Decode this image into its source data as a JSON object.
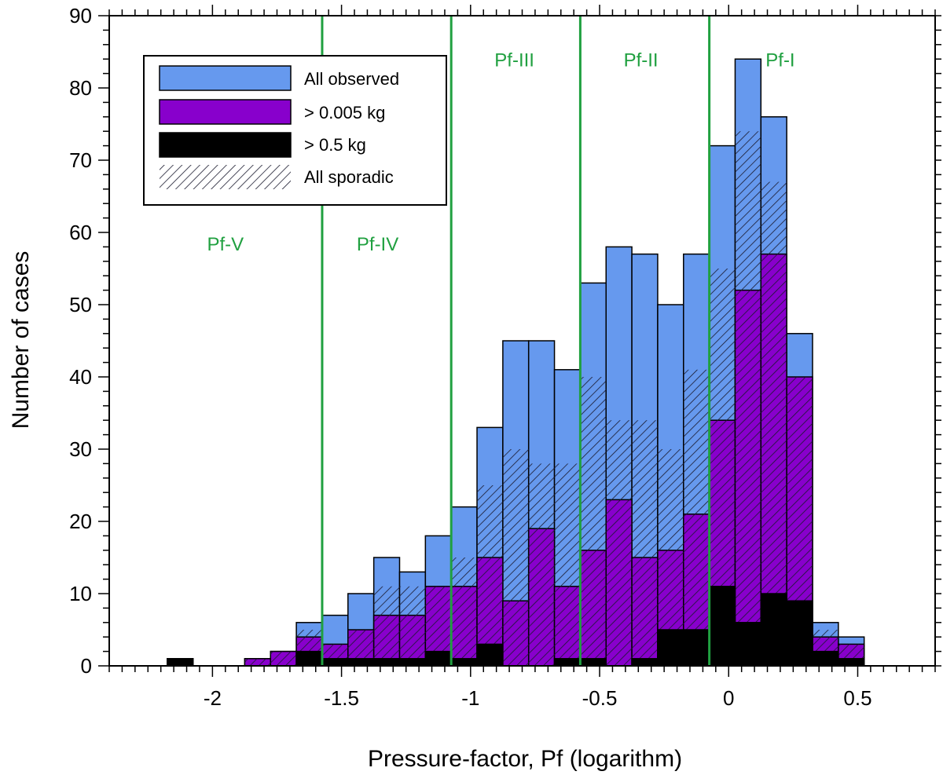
{
  "chart_data": {
    "type": "bar",
    "subtype": "histogram",
    "title": "",
    "xlabel": "Pressure-factor, Pf (logarithm)",
    "ylabel": "Number of cases",
    "xlim": [
      -2.4,
      0.8
    ],
    "ylim": [
      0,
      90
    ],
    "bin_width": 0.1,
    "x_ticks": [
      {
        "value": -2,
        "label": "-2"
      },
      {
        "value": -1.5,
        "label": "-1.5"
      },
      {
        "value": -1,
        "label": "-1"
      },
      {
        "value": -0.5,
        "label": "-0.5"
      },
      {
        "value": 0,
        "label": "0"
      },
      {
        "value": 0.5,
        "label": "0.5"
      }
    ],
    "y_ticks": [
      {
        "value": 0,
        "label": "0"
      },
      {
        "value": 10,
        "label": "10"
      },
      {
        "value": 20,
        "label": "20"
      },
      {
        "value": 30,
        "label": "30"
      },
      {
        "value": 40,
        "label": "40"
      },
      {
        "value": 50,
        "label": "50"
      },
      {
        "value": 60,
        "label": "60"
      },
      {
        "value": 70,
        "label": "70"
      },
      {
        "value": 80,
        "label": "80"
      },
      {
        "value": 90,
        "label": "90"
      }
    ],
    "bins_left_edge": [
      -2.175,
      -1.875,
      -1.775,
      -1.675,
      -1.575,
      -1.475,
      -1.375,
      -1.275,
      -1.175,
      -1.075,
      -0.975,
      -0.875,
      -0.775,
      -0.675,
      -0.575,
      -0.475,
      -0.375,
      -0.275,
      -0.175,
      -0.075,
      0.025,
      0.125,
      0.225,
      0.325,
      0.425
    ],
    "series": [
      {
        "name": "All observed",
        "color": "#6699ee",
        "values": [
          1,
          1,
          2,
          6,
          7,
          10,
          15,
          13,
          18,
          22,
          33,
          45,
          45,
          41,
          53,
          58,
          57,
          50,
          57,
          72,
          84,
          76,
          46,
          6,
          4
        ]
      },
      {
        "name": "> 0.005 kg",
        "color": "#8800cc",
        "values": [
          1,
          1,
          2,
          4,
          3,
          5,
          7,
          7,
          11,
          11,
          15,
          9,
          19,
          11,
          16,
          23,
          15,
          16,
          21,
          34,
          52,
          57,
          40,
          4,
          3
        ]
      },
      {
        "name": "> 0.5 kg",
        "color": "#000000",
        "values": [
          1,
          0,
          0,
          2,
          1,
          1,
          1,
          1,
          2,
          1,
          3,
          0,
          0,
          1,
          1,
          0,
          1,
          5,
          5,
          11,
          6,
          10,
          9,
          2,
          1
        ]
      },
      {
        "name": "All sporadic",
        "pattern": "hatched",
        "values": [
          0,
          1,
          2,
          5,
          3,
          5,
          11,
          11,
          11,
          15,
          25,
          30,
          28,
          28,
          40,
          34,
          34,
          30,
          41,
          55,
          74,
          67,
          40,
          5,
          3
        ]
      }
    ],
    "legend_position": "top-left",
    "region_boundaries": [
      -1.575,
      -1.075,
      -0.575,
      -0.075
    ],
    "region_color": "#20a040",
    "regions": [
      {
        "label": "Pf-V",
        "x": -1.95,
        "y": 57.5
      },
      {
        "label": "Pf-IV",
        "x": -1.36,
        "y": 57.5
      },
      {
        "label": "Pf-III",
        "x": -0.83,
        "y": 83
      },
      {
        "label": "Pf-II",
        "x": -0.34,
        "y": 83
      },
      {
        "label": "Pf-I",
        "x": 0.2,
        "y": 83
      }
    ]
  }
}
